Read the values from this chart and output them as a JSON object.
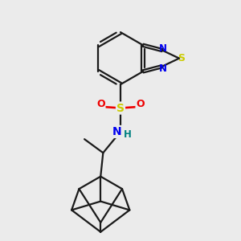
{
  "bg_color": "#ebebeb",
  "bond_color": "#1a1a1a",
  "bond_width": 1.6,
  "atom_colors": {
    "S_thia": "#cccc00",
    "S_sul": "#cccc00",
    "N": "#0000ee",
    "O": "#ee0000",
    "H": "#008080",
    "C": "#1a1a1a"
  }
}
